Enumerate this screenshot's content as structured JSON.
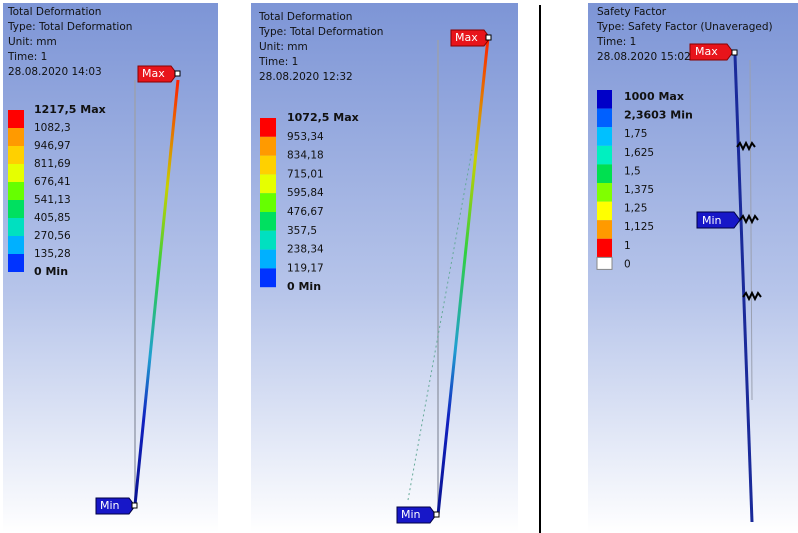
{
  "panels": [
    {
      "header": [
        "Total Deformation",
        "Type: Total Deformation",
        "Unit: mm",
        "Time: 1",
        "28.08.2020 14:03"
      ],
      "legend": [
        "1217,5 Max",
        "1082,3",
        "946,97",
        "811,69",
        "676,41",
        "541,13",
        "405,85",
        "270,56",
        "135,28",
        "0 Min"
      ],
      "max_tag": "Max",
      "min_tag": "Min"
    },
    {
      "header": [
        "Total Deformation",
        "Type: Total Deformation",
        "Unit: mm",
        "Time: 1",
        "28.08.2020 12:32"
      ],
      "legend": [
        "1072,5 Max",
        "953,34",
        "834,18",
        "715,01",
        "595,84",
        "476,67",
        "357,5",
        "238,34",
        "119,17",
        "0 Min"
      ],
      "max_tag": "Max",
      "min_tag": "Min"
    },
    {
      "header": [
        "Safety Factor",
        "Type: Safety Factor (Unaveraged)",
        "Time: 1",
        "28.08.2020 15:02"
      ],
      "legend": [
        "1000 Max",
        "2,3603 Min",
        "1,75",
        "1,625",
        "1,5",
        "1,375",
        "1,25",
        "1,125",
        "1",
        "0"
      ],
      "max_tag": "Max",
      "min_tag": "Min"
    }
  ]
}
